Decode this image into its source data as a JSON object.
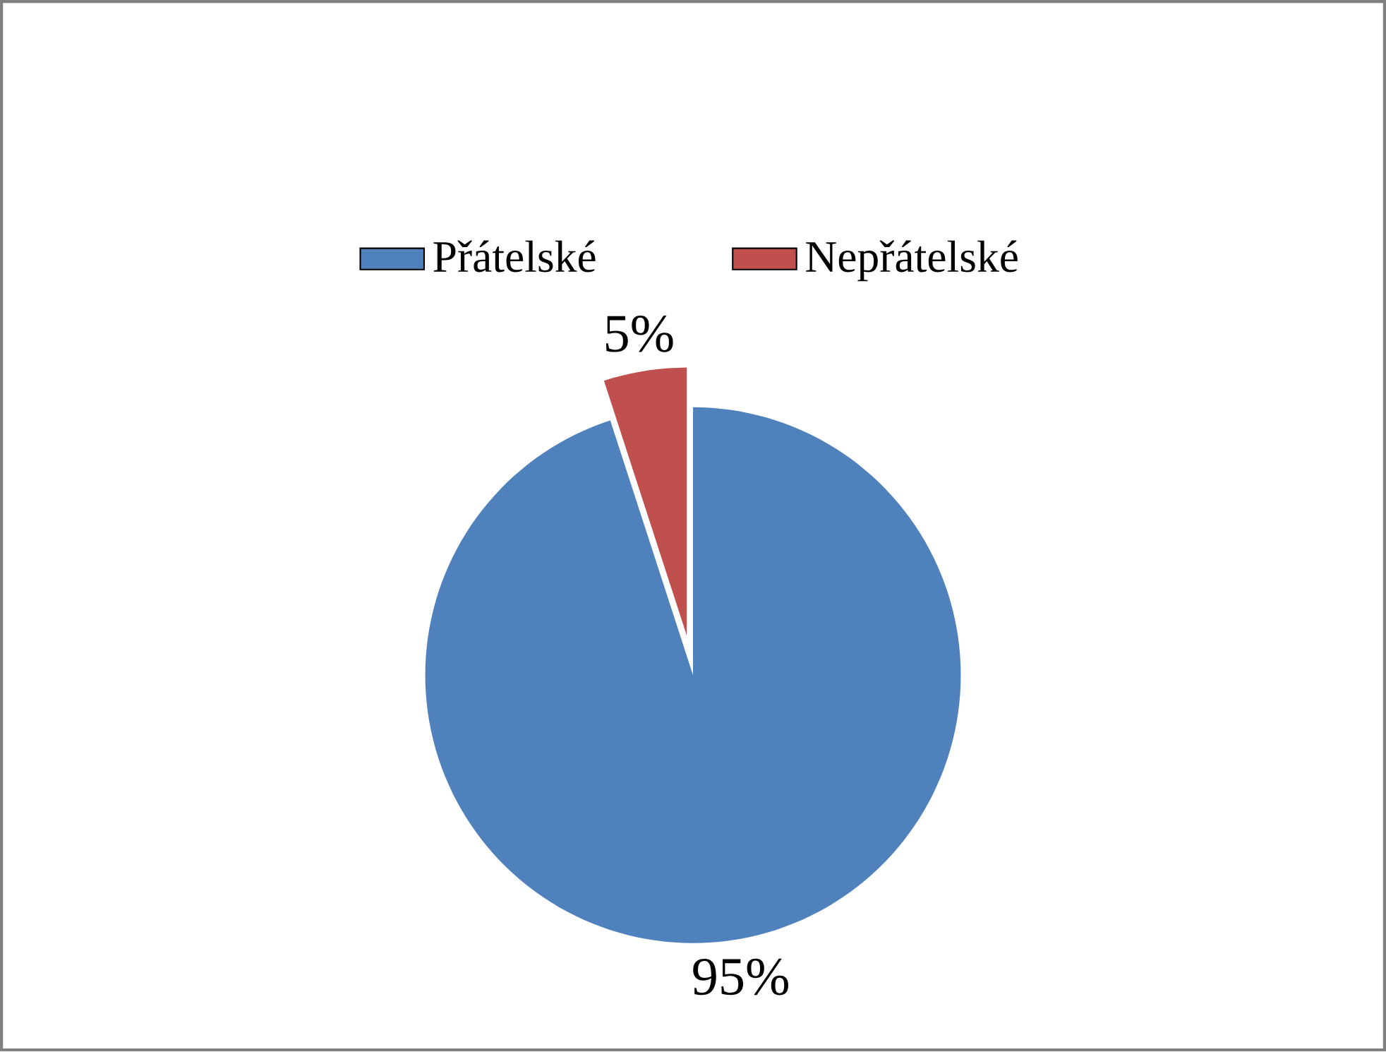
{
  "chart_data": {
    "type": "pie",
    "categories": [
      "Přátelské",
      "Nepřátelské"
    ],
    "values": [
      95,
      5
    ],
    "value_labels": [
      "95%",
      "5%"
    ],
    "colors": [
      "#4f81bd",
      "#c0504d"
    ],
    "legend": "top"
  }
}
